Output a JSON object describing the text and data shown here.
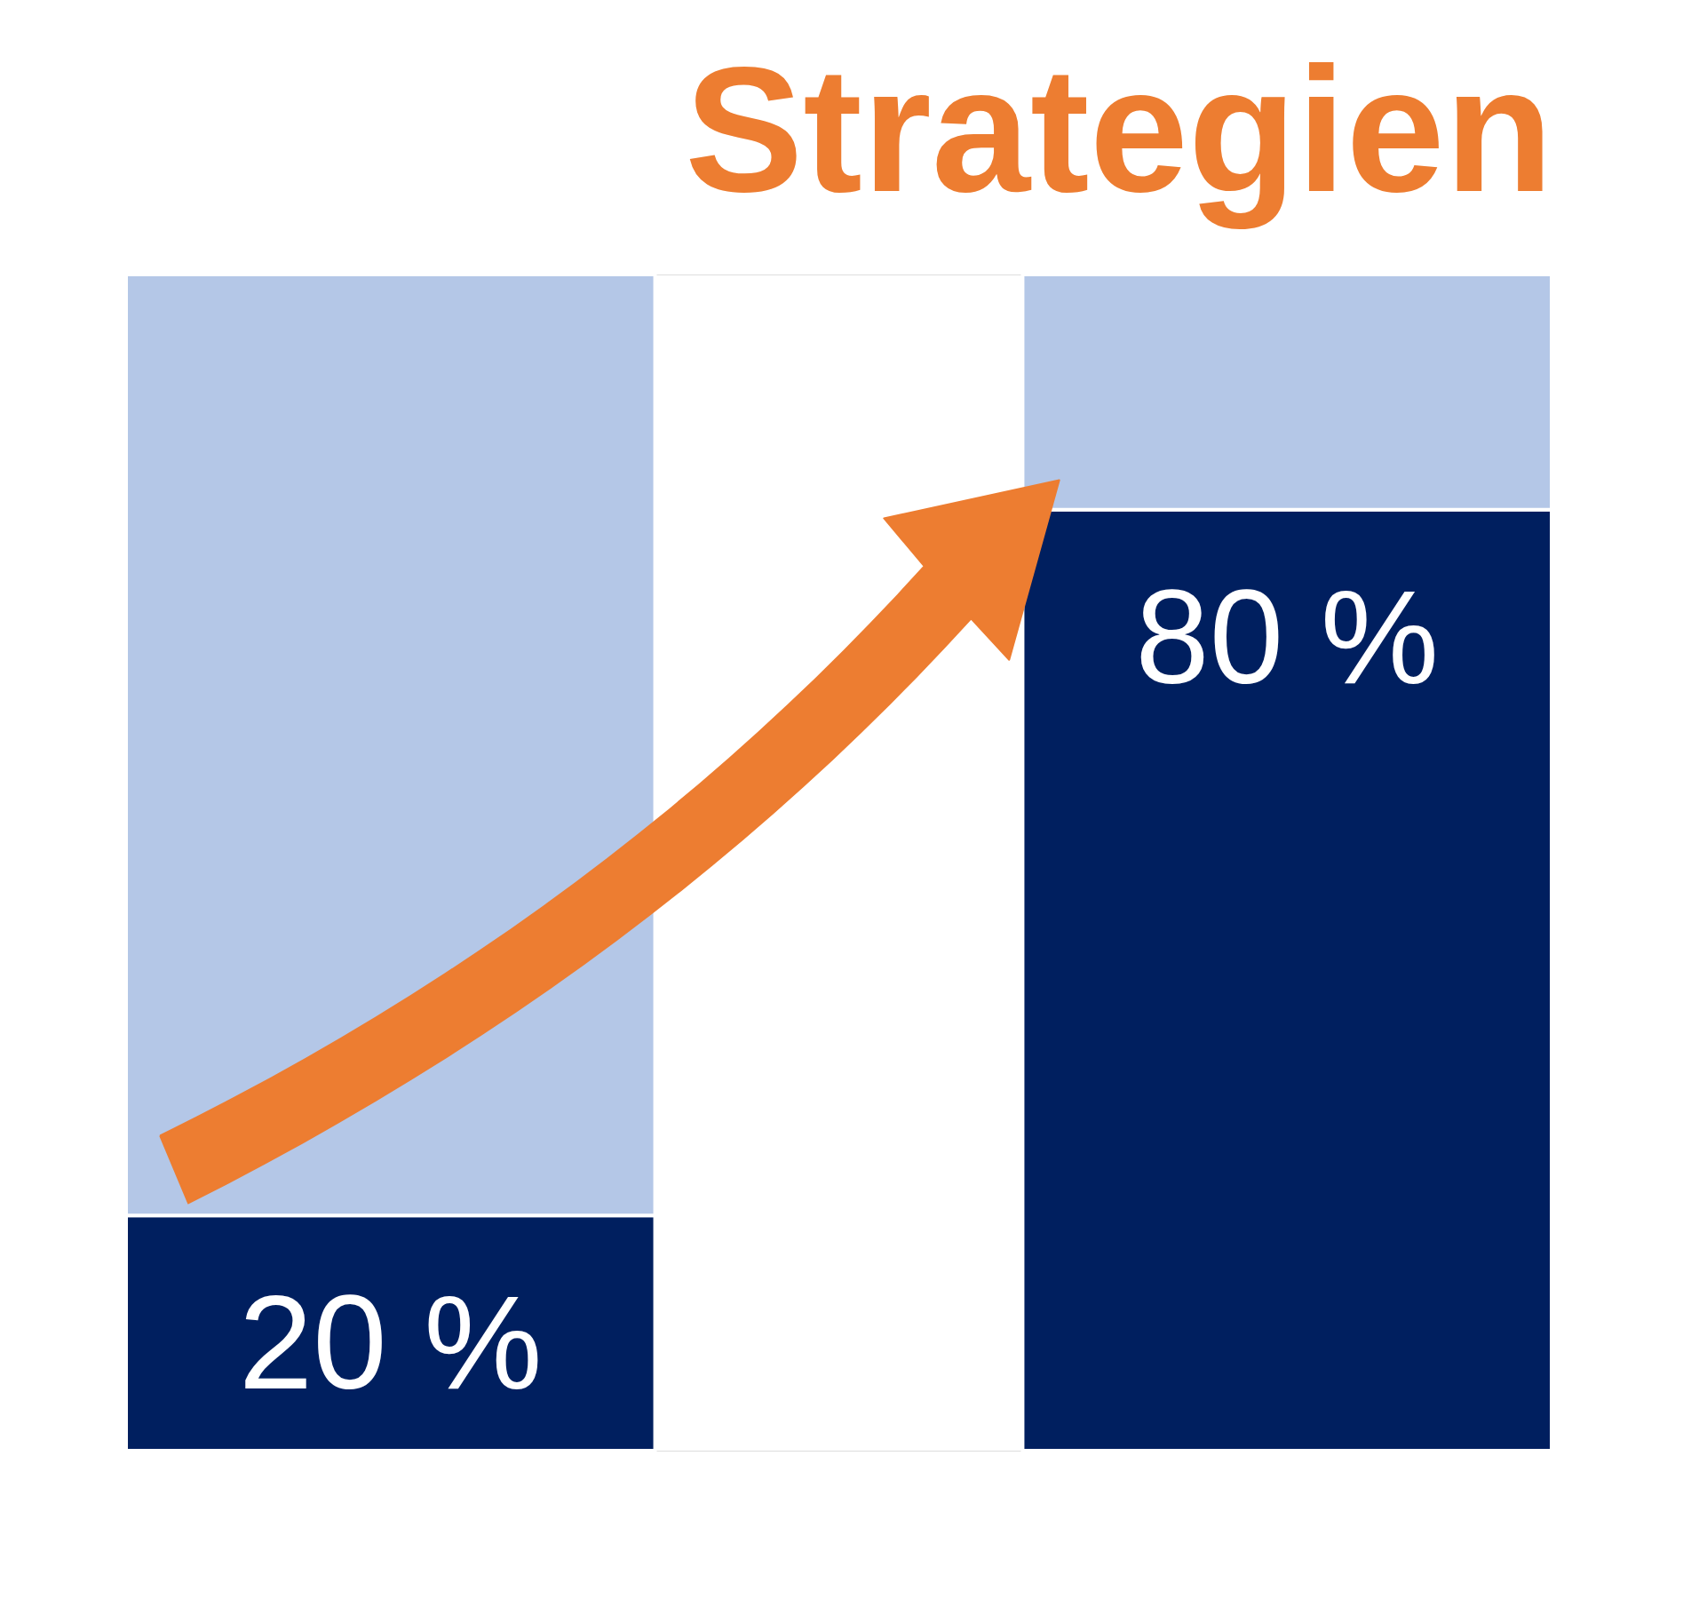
{
  "chart_data": {
    "type": "bar",
    "title": "Strategien",
    "categories": [
      null,
      null
    ],
    "stacked": true,
    "series": [
      {
        "color": "#001f5f",
        "values": [
          20,
          80
        ],
        "value_labels": [
          "20 %",
          "80 %"
        ]
      },
      {
        "color": "#b4c7e7",
        "values": [
          80,
          20
        ]
      }
    ],
    "ylim": [
      0,
      100
    ],
    "tick_labels": false,
    "grid": false
  }
}
